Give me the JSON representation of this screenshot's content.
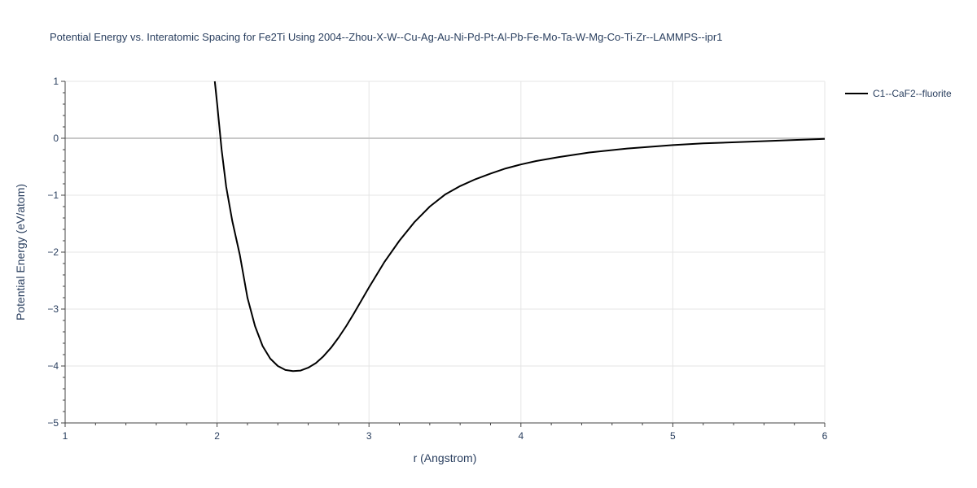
{
  "chart_data": {
    "type": "line",
    "title": "Potential Energy vs. Interatomic Spacing for Fe2Ti Using 2004--Zhou-X-W--Cu-Ag-Au-Ni-Pd-Pt-Al-Pb-Fe-Mo-Ta-W-Mg-Co-Ti-Zr--LAMMPS--ipr1",
    "xlabel": "r (Angstrom)",
    "ylabel": "Potential Energy (eV/atom)",
    "xlim": [
      1,
      6
    ],
    "ylim": [
      -5,
      1
    ],
    "x_ticks": [
      1,
      2,
      3,
      4,
      5,
      6
    ],
    "x_tick_labels": [
      "1",
      "2",
      "3",
      "4",
      "5",
      "6"
    ],
    "y_ticks": [
      1,
      0,
      -1,
      -2,
      -3,
      -4,
      -5
    ],
    "y_tick_labels": [
      "1",
      "0",
      "−1",
      "−2",
      "−3",
      "−4",
      "−5"
    ],
    "grid": true,
    "legend_position": "top-right",
    "series": [
      {
        "name": "C1--CaF2--fluorite",
        "color": "#000000",
        "x": [
          1.985,
          2.0,
          2.03,
          2.06,
          2.1,
          2.15,
          2.2,
          2.25,
          2.3,
          2.35,
          2.4,
          2.45,
          2.5,
          2.55,
          2.6,
          2.65,
          2.7,
          2.75,
          2.8,
          2.85,
          2.9,
          3.0,
          3.1,
          3.2,
          3.3,
          3.4,
          3.5,
          3.6,
          3.7,
          3.8,
          3.9,
          4.0,
          4.1,
          4.25,
          4.45,
          4.7,
          5.0,
          5.2,
          5.5,
          5.8,
          6.0
        ],
        "y": [
          1.0,
          0.62,
          -0.2,
          -0.85,
          -1.45,
          -2.05,
          -2.8,
          -3.3,
          -3.65,
          -3.87,
          -4.0,
          -4.07,
          -4.09,
          -4.08,
          -4.03,
          -3.95,
          -3.83,
          -3.68,
          -3.5,
          -3.3,
          -3.08,
          -2.62,
          -2.18,
          -1.8,
          -1.47,
          -1.2,
          -0.99,
          -0.84,
          -0.72,
          -0.62,
          -0.53,
          -0.46,
          -0.4,
          -0.33,
          -0.25,
          -0.18,
          -0.12,
          -0.09,
          -0.06,
          -0.03,
          -0.01
        ]
      }
    ]
  }
}
